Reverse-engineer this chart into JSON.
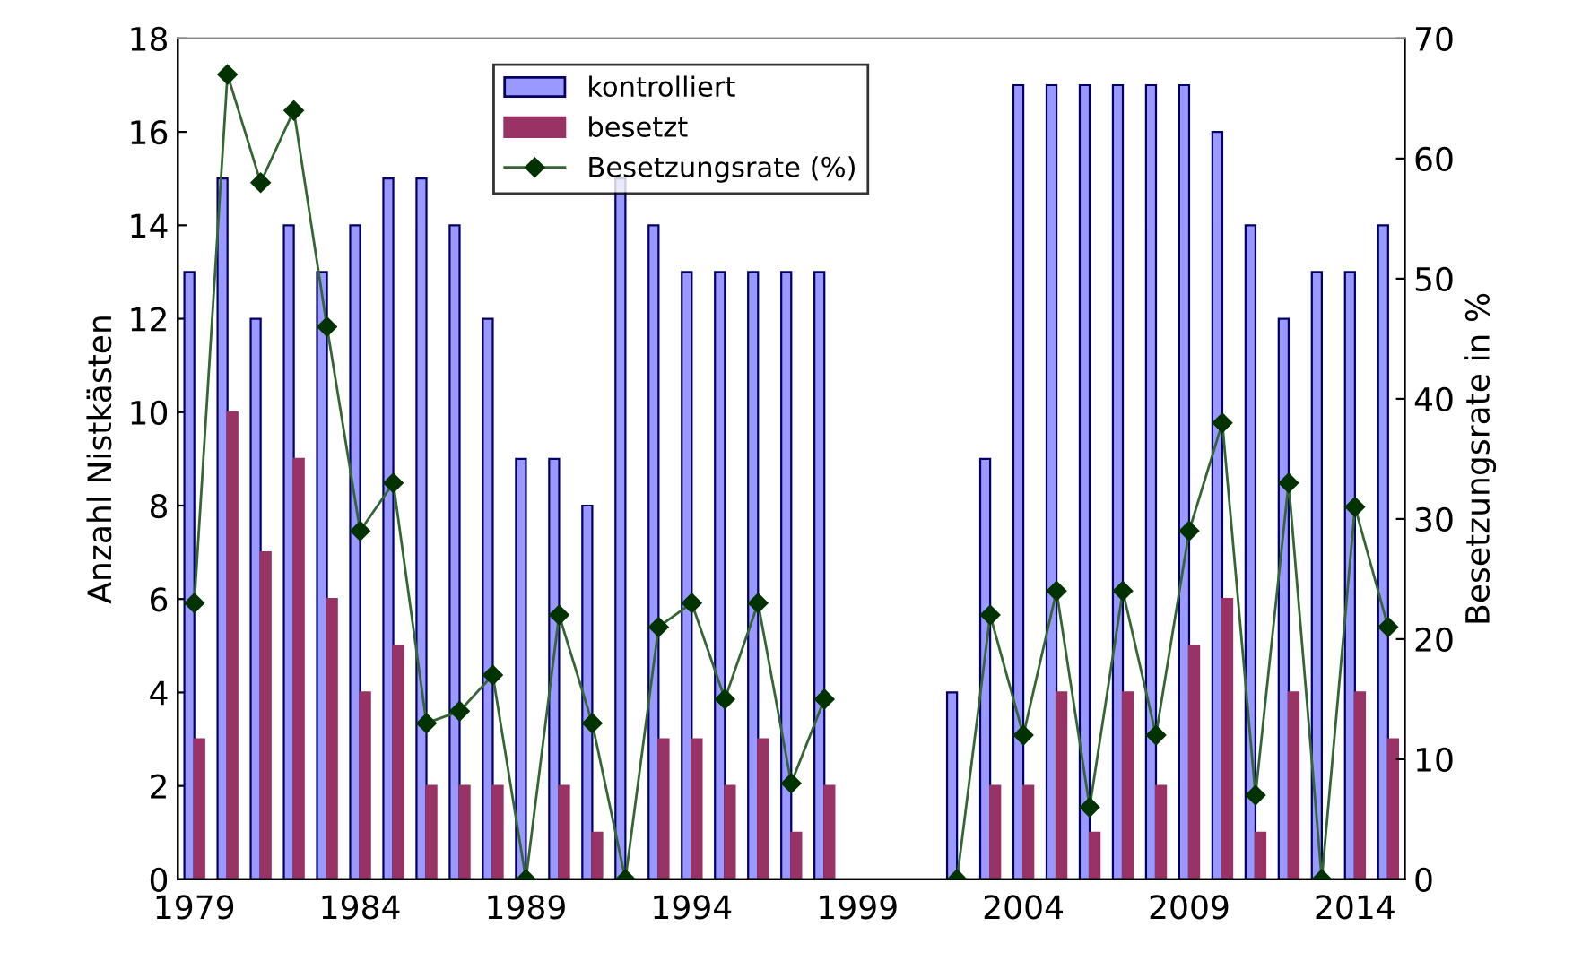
{
  "chart_data": {
    "type": "bar",
    "ylabel": "Anzahl Nistkästen",
    "y2label": "Besetzungsrate in %",
    "categories": [
      "1979",
      null,
      null,
      null,
      null,
      "1984",
      null,
      null,
      null,
      null,
      "1989",
      null,
      null,
      null,
      null,
      "1994",
      null,
      null,
      null,
      null,
      "1999",
      null,
      null,
      null,
      null,
      "2004",
      null,
      null,
      null,
      null,
      "2009",
      null,
      null,
      null,
      null,
      "2014",
      null
    ],
    "series": [
      {
        "name": "kontrolliert",
        "color": "#9999ff",
        "values": [
          13,
          15,
          12,
          14,
          13,
          14,
          15,
          15,
          14,
          12,
          9,
          9,
          8,
          15,
          14,
          13,
          13,
          13,
          13,
          13,
          null,
          null,
          null,
          4,
          9,
          17,
          17,
          17,
          17,
          17,
          17,
          16,
          14,
          12,
          13,
          13,
          14
        ]
      },
      {
        "name": "besetzt",
        "color": "#993366",
        "values": [
          3,
          10,
          7,
          9,
          6,
          4,
          5,
          2,
          2,
          2,
          0,
          2,
          1,
          0,
          3,
          3,
          2,
          3,
          1,
          2,
          null,
          null,
          null,
          0,
          2,
          2,
          4,
          1,
          4,
          2,
          5,
          6,
          1,
          4,
          0,
          4,
          3
        ]
      },
      {
        "name": "Besetzungsrate (%)",
        "type": "line",
        "axis": "y2",
        "color": "#336633",
        "marker": "diamond",
        "values": [
          23,
          67,
          58,
          64,
          46,
          29,
          33,
          13,
          14,
          17,
          0,
          22,
          13,
          0,
          21,
          23,
          15,
          23,
          8,
          15,
          null,
          null,
          null,
          0,
          22,
          12,
          24,
          6,
          24,
          12,
          29,
          38,
          7,
          33,
          0,
          31,
          21
        ]
      }
    ],
    "ylim": [
      0,
      18
    ],
    "yticks": [
      0,
      2,
      4,
      6,
      8,
      10,
      12,
      14,
      16,
      18
    ],
    "y2lim": [
      0,
      70
    ],
    "y2ticks": [
      0,
      10,
      20,
      30,
      40,
      50,
      60,
      70
    ],
    "legend": "top",
    "grid": false
  }
}
